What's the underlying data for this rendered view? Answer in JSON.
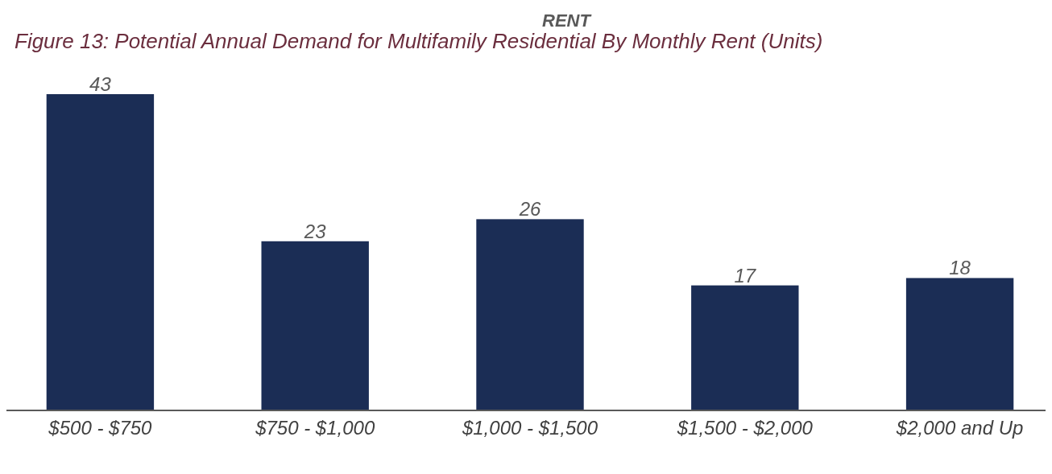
{
  "chart_data": {
    "type": "bar",
    "title": "Figure 13:  Potential Annual Demand for Multifamily Residential By Monthly Rent (Units)",
    "xlabel": "RENT",
    "categories": [
      "$500 - $750",
      "$750 - $1,000",
      "$1,000 - $1,500",
      "$1,500 - $2,000",
      "$2,000 and Up"
    ],
    "values": [
      43,
      23,
      26,
      17,
      18
    ],
    "color": "#1b2d55",
    "data_labels": true
  }
}
